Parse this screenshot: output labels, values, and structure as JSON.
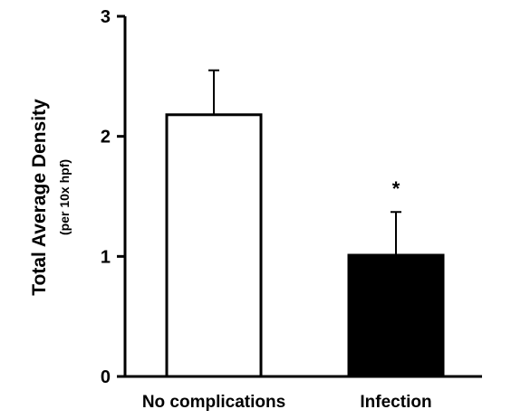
{
  "chart_data": {
    "type": "bar",
    "categories": [
      "No complications",
      "Infection"
    ],
    "values": [
      2.18,
      1.01
    ],
    "errors_upper": [
      0.37,
      0.36
    ],
    "significance": [
      "",
      "*"
    ],
    "bar_colors": [
      "#ffffff",
      "#000000"
    ],
    "ylabel": "Total Average Density",
    "ylabel_sub": "(per 10x hpf)",
    "xlabel": "",
    "title": "",
    "ylim": [
      0,
      3
    ],
    "yticks": [
      "0",
      "1",
      "2",
      "3"
    ],
    "grid": false,
    "legend": "none"
  }
}
